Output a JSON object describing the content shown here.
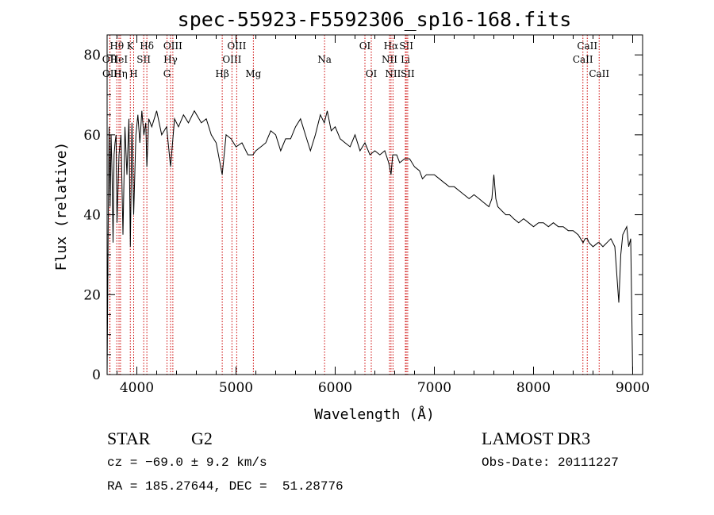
{
  "chart_data": {
    "type": "line",
    "title": "spec-55923-F5592306_sp16-168.fits",
    "xlabel": "Wavelength (Å)",
    "ylabel": "Flux (relative)",
    "xlim": [
      3700,
      9100
    ],
    "ylim": [
      0,
      85
    ],
    "xticks": [
      4000,
      5000,
      6000,
      7000,
      8000,
      9000
    ],
    "yticks": [
      0,
      20,
      40,
      60,
      80
    ],
    "line_color": "#000000",
    "marker_color": "#cc0000",
    "series": [
      {
        "name": "flux",
        "x": [
          3700,
          3710,
          3720,
          3730,
          3740,
          3750,
          3760,
          3770,
          3780,
          3790,
          3800,
          3820,
          3840,
          3860,
          3880,
          3900,
          3920,
          3934,
          3950,
          3968,
          3990,
          4010,
          4030,
          4050,
          4070,
          4090,
          4101,
          4120,
          4150,
          4200,
          4250,
          4300,
          4340,
          4380,
          4420,
          4470,
          4520,
          4580,
          4650,
          4700,
          4750,
          4800,
          4861,
          4900,
          4950,
          5000,
          5060,
          5120,
          5170,
          5200,
          5250,
          5300,
          5350,
          5400,
          5450,
          5500,
          5550,
          5600,
          5650,
          5700,
          5750,
          5800,
          5850,
          5890,
          5920,
          5960,
          6000,
          6050,
          6100,
          6150,
          6200,
          6250,
          6300,
          6350,
          6400,
          6450,
          6500,
          6540,
          6563,
          6580,
          6620,
          6650,
          6700,
          6750,
          6800,
          6850,
          6880,
          6920,
          6960,
          7000,
          7050,
          7100,
          7150,
          7200,
          7250,
          7300,
          7350,
          7400,
          7450,
          7500,
          7550,
          7580,
          7600,
          7620,
          7640,
          7680,
          7720,
          7760,
          7800,
          7850,
          7900,
          7950,
          8000,
          8050,
          8100,
          8150,
          8200,
          8250,
          8300,
          8350,
          8400,
          8450,
          8500,
          8520,
          8542,
          8560,
          8600,
          8650,
          8662,
          8700,
          8740,
          8780,
          8820,
          8840,
          8860,
          8880,
          8900,
          8940,
          8960,
          8980,
          9000
        ],
        "y": [
          0,
          35,
          62,
          42,
          60,
          50,
          33,
          55,
          58,
          60,
          38,
          55,
          60,
          35,
          62,
          50,
          64,
          32,
          63,
          40,
          60,
          65,
          58,
          66,
          60,
          63,
          52,
          64,
          62,
          66,
          60,
          62,
          52,
          64,
          62,
          65,
          63,
          66,
          63,
          64,
          60,
          58,
          50,
          60,
          59,
          57,
          58,
          55,
          55,
          56,
          57,
          58,
          61,
          60,
          56,
          59,
          59,
          62,
          64,
          60,
          56,
          60,
          65,
          63,
          66,
          61,
          62,
          59,
          58,
          57,
          60,
          56,
          58,
          55,
          56,
          55,
          56,
          53,
          50,
          55,
          55,
          53,
          54,
          54,
          52,
          51,
          49,
          50,
          50,
          50,
          49,
          48,
          47,
          47,
          46,
          45,
          44,
          45,
          44,
          43,
          42,
          44,
          50,
          44,
          42,
          41,
          40,
          40,
          39,
          38,
          39,
          38,
          37,
          38,
          38,
          37,
          38,
          37,
          37,
          36,
          36,
          35,
          33,
          34,
          34,
          33,
          32,
          33,
          33,
          32,
          33,
          34,
          32,
          25,
          18,
          30,
          35,
          37,
          32,
          34,
          0
        ]
      }
    ],
    "line_markers": [
      {
        "label": "Hθ",
        "x": 3798,
        "row": 1
      },
      {
        "label": "OII",
        "x": 3727,
        "row": 2
      },
      {
        "label": "HeI",
        "x": 3820,
        "row": 2
      },
      {
        "label": "OII",
        "x": 3729,
        "row": 3
      },
      {
        "label": "Hη",
        "x": 3835,
        "row": 3
      },
      {
        "label": "K",
        "x": 3934,
        "row": 1
      },
      {
        "label": "SII",
        "x": 4069,
        "row": 2
      },
      {
        "label": "H",
        "x": 3968,
        "row": 3
      },
      {
        "label": "Hδ",
        "x": 4101,
        "row": 1
      },
      {
        "label": "OIII",
        "x": 4363,
        "row": 1
      },
      {
        "label": "Hγ",
        "x": 4340,
        "row": 2
      },
      {
        "label": "G",
        "x": 4304,
        "row": 3
      },
      {
        "label": "Hβ",
        "x": 4861,
        "row": 3
      },
      {
        "label": "OIII",
        "x": 5007,
        "row": 1
      },
      {
        "label": "OIII",
        "x": 4959,
        "row": 2
      },
      {
        "label": "Mg",
        "x": 5175,
        "row": 3
      },
      {
        "label": "Na",
        "x": 5893,
        "row": 2
      },
      {
        "label": "OI",
        "x": 6300,
        "row": 1
      },
      {
        "label": "OI",
        "x": 6364,
        "row": 3
      },
      {
        "label": "Hα",
        "x": 6563,
        "row": 1
      },
      {
        "label": "SII",
        "x": 6717,
        "row": 1
      },
      {
        "label": "NII",
        "x": 6548,
        "row": 2
      },
      {
        "label": "Li",
        "x": 6708,
        "row": 2
      },
      {
        "label": "NII",
        "x": 6583,
        "row": 3
      },
      {
        "label": "SII",
        "x": 6731,
        "row": 3
      },
      {
        "label": "CaII",
        "x": 8542,
        "row": 1
      },
      {
        "label": "CaII",
        "x": 8498,
        "row": 2
      },
      {
        "label": "CaII",
        "x": 8662,
        "row": 3
      }
    ]
  },
  "footer": {
    "object_class": "STAR",
    "subclass": "G2",
    "redshift": "cz = −69.0 ± 9.2 km/s",
    "coords": "RA = 185.27644, DEC =  51.28776",
    "survey": "LAMOST DR3",
    "obs_date": "Obs-Date: 20111227"
  }
}
